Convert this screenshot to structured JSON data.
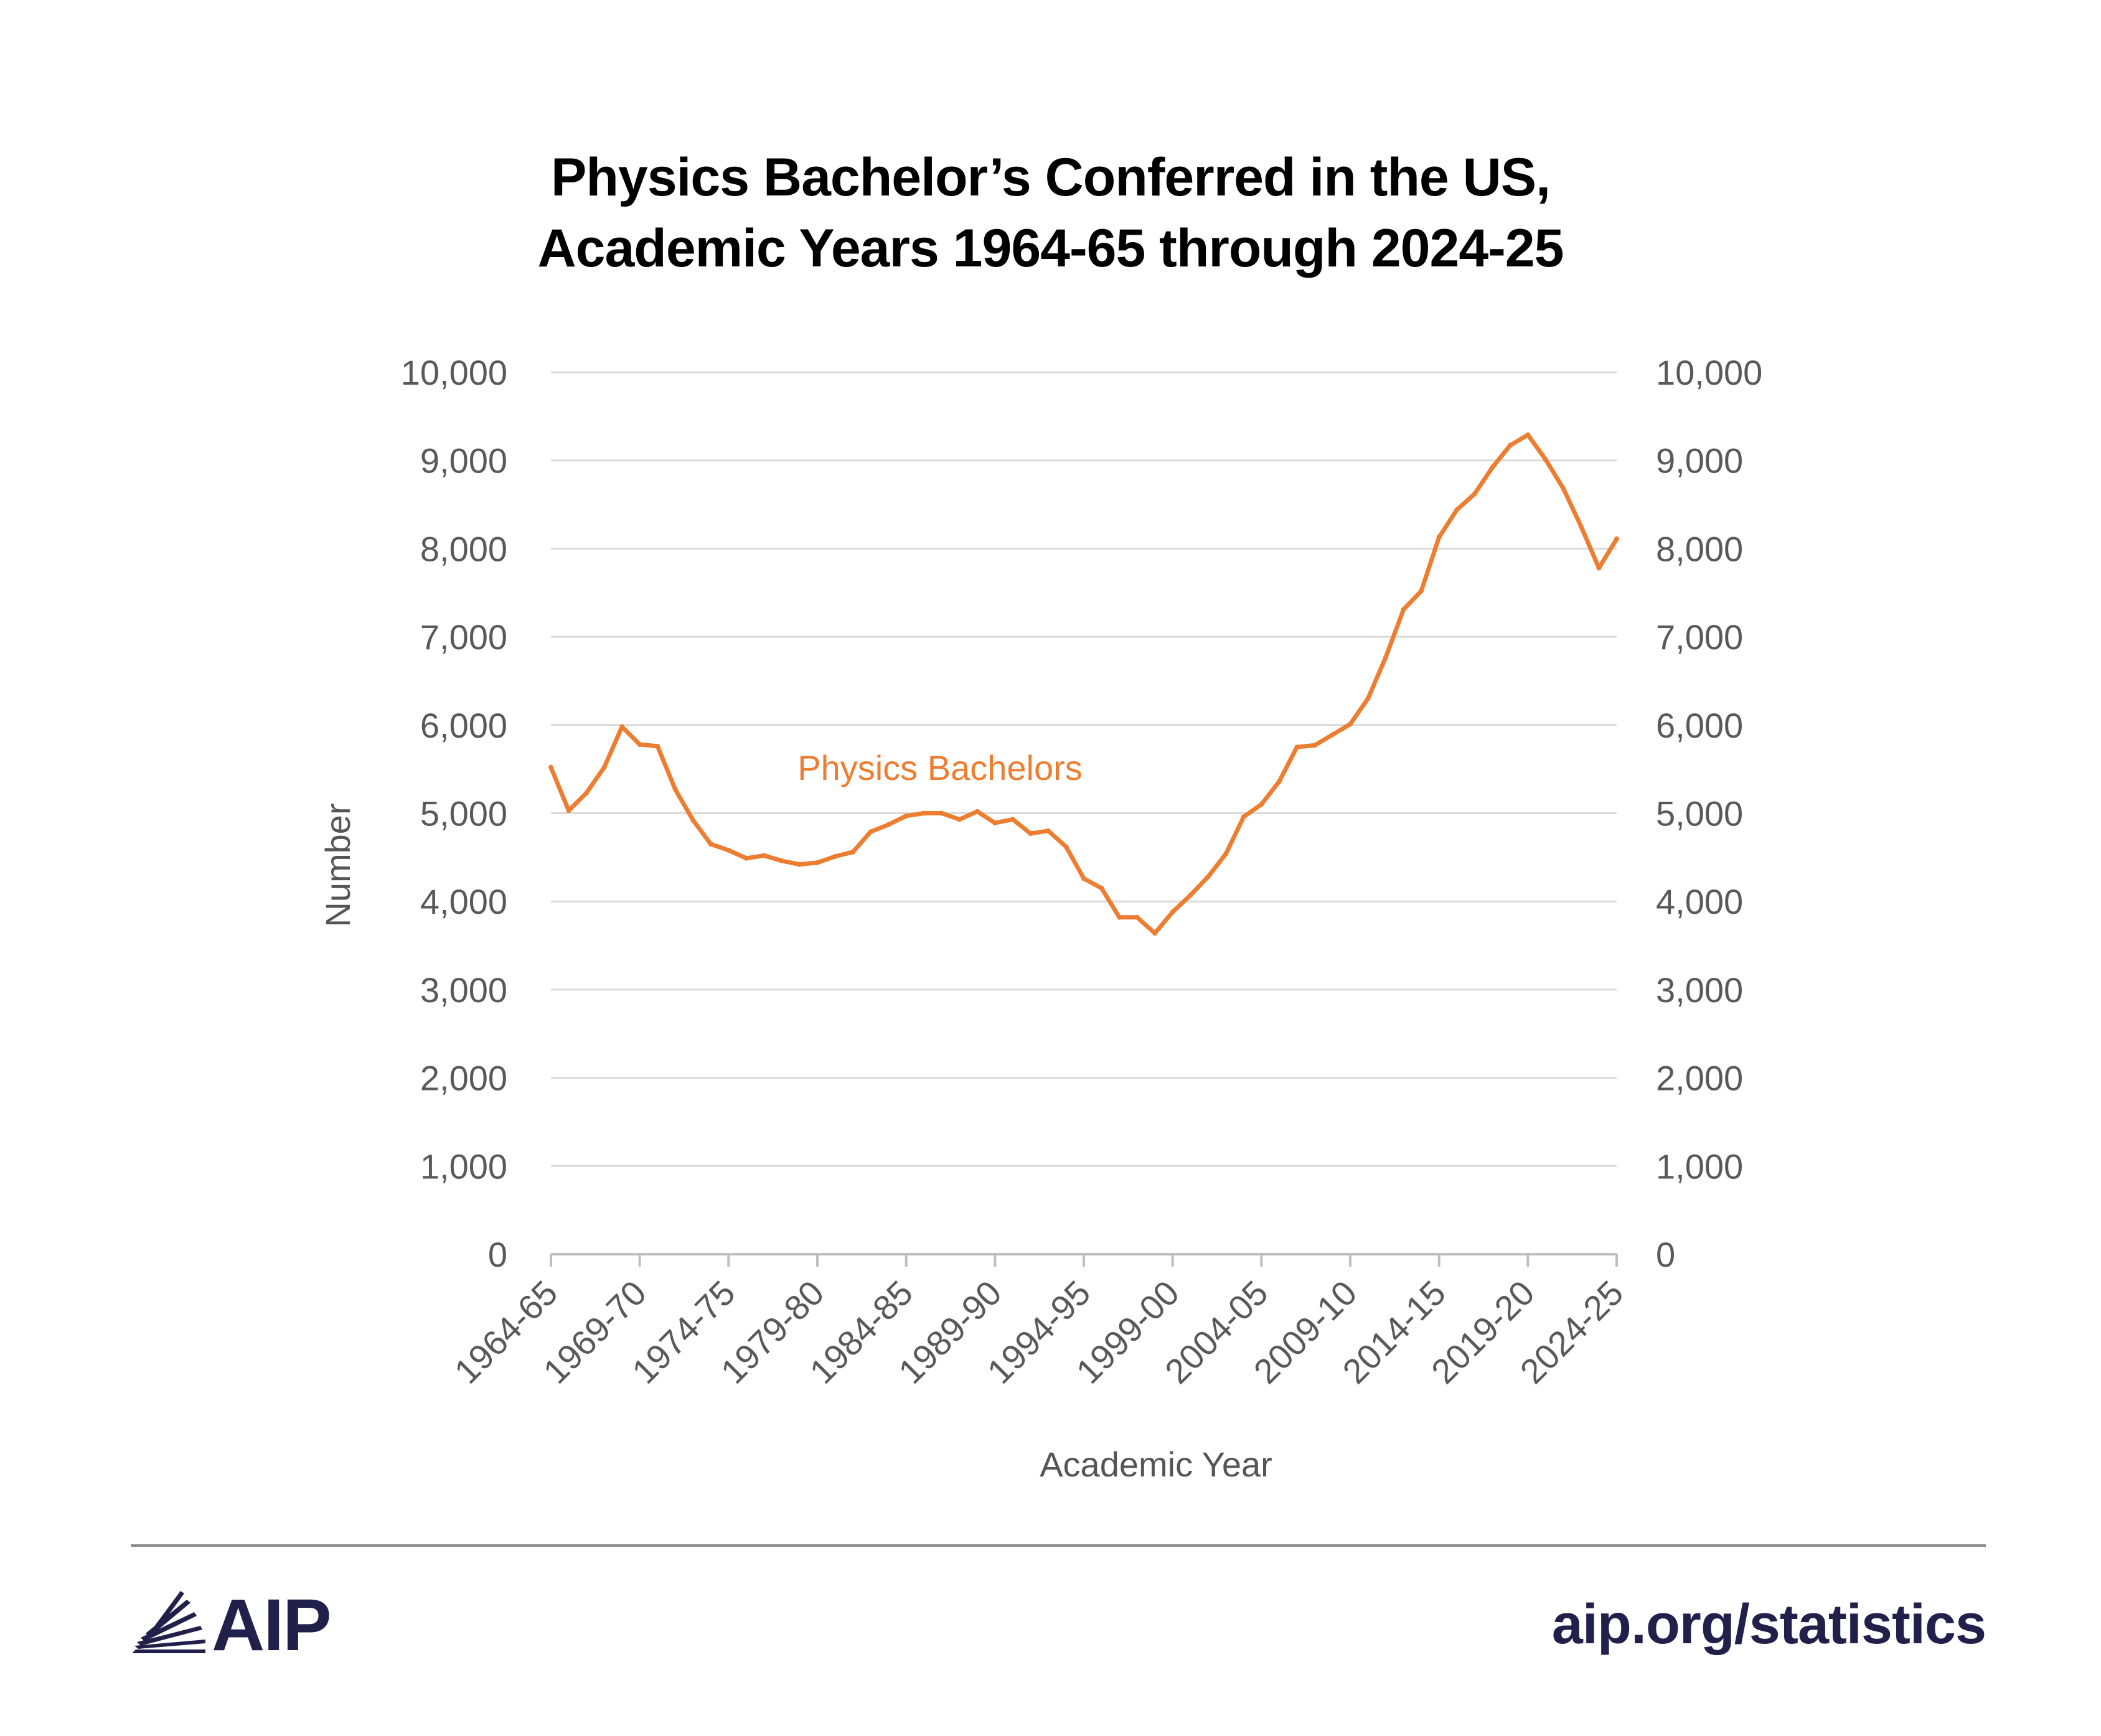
{
  "title_line1": "Physics Bachelor’s Conferred in the US,",
  "title_line2": "Academic Years 1964-65 through 2024-25",
  "brand": {
    "logo_text": "AIP",
    "url": "aip.org/statistics",
    "color": "#20204a"
  },
  "chart_data": {
    "type": "line",
    "xlabel": "Academic Year",
    "ylabel": "Number",
    "ylim": [
      0,
      10000
    ],
    "yticks": [
      "0",
      "1,000",
      "2,000",
      "3,000",
      "4,000",
      "5,000",
      "6,000",
      "7,000",
      "8,000",
      "9,000",
      "10,000"
    ],
    "xtick_labels": [
      "1964-65",
      "1969-70",
      "1974-75",
      "1979-80",
      "1984-85",
      "1989-90",
      "1994-95",
      "1999-00",
      "2004-05",
      "2009-10",
      "2014-15",
      "2019-20",
      "2024-25"
    ],
    "grid": true,
    "line_color": "#ed7d31",
    "annotation": "Physics Bachelors",
    "series": [
      {
        "color": "#ed7d31",
        "x": [
          "1964-65",
          "1965-66",
          "1966-67",
          "1967-68",
          "1968-69",
          "1969-70",
          "1970-71",
          "1971-72",
          "1972-73",
          "1973-74",
          "1974-75",
          "1975-76",
          "1976-77",
          "1977-78",
          "1978-79",
          "1979-80",
          "1980-81",
          "1981-82",
          "1982-83",
          "1983-84",
          "1984-85",
          "1985-86",
          "1986-87",
          "1987-88",
          "1988-89",
          "1989-90",
          "1990-91",
          "1991-92",
          "1992-93",
          "1993-94",
          "1994-95",
          "1995-96",
          "1996-97",
          "1997-98",
          "1998-99",
          "1999-00",
          "2000-01",
          "2001-02",
          "2002-03",
          "2003-04",
          "2004-05",
          "2005-06",
          "2006-07",
          "2007-08",
          "2008-09",
          "2009-10",
          "2010-11",
          "2011-12",
          "2012-13",
          "2013-14",
          "2014-15",
          "2015-16",
          "2016-17",
          "2017-18",
          "2018-19",
          "2019-20",
          "2020-21",
          "2021-22",
          "2022-23",
          "2023-24",
          "2024-25"
        ],
        "values": [
          5520,
          5030,
          5230,
          5520,
          5980,
          5780,
          5760,
          5270,
          4920,
          4650,
          4580,
          4490,
          4520,
          4460,
          4420,
          4440,
          4510,
          4560,
          4790,
          4870,
          4970,
          5000,
          5000,
          4930,
          5020,
          4890,
          4930,
          4770,
          4800,
          4620,
          4260,
          4150,
          3820,
          3820,
          3640,
          3880,
          4070,
          4280,
          4540,
          4960,
          5100,
          5360,
          5750,
          5770,
          5890,
          6010,
          6300,
          6770,
          7310,
          7520,
          8130,
          8440,
          8620,
          8920,
          9170,
          9290,
          9010,
          8680,
          8250,
          7780,
          8110
        ]
      }
    ]
  }
}
